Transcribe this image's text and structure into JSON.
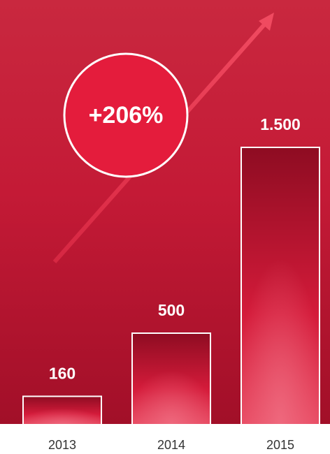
{
  "chart_data": {
    "type": "bar",
    "annotation": "+206%",
    "categories": [
      "2013",
      "2014",
      "2015"
    ],
    "values": [
      160,
      500,
      1500
    ],
    "value_labels": [
      "160",
      "500",
      "1.500"
    ],
    "color": "#c8102e"
  }
}
